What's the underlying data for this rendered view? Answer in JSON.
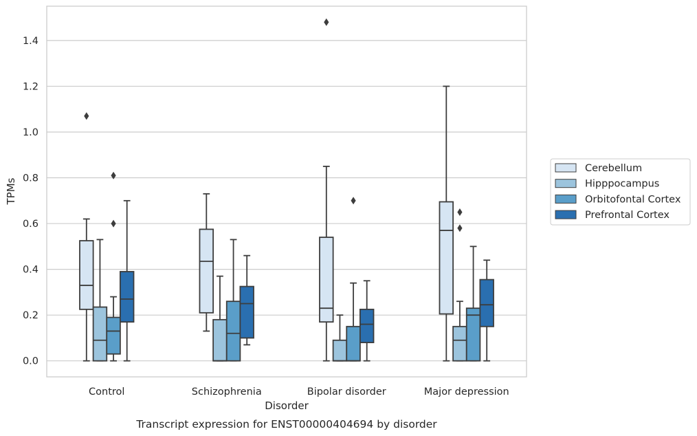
{
  "chart_data": {
    "type": "box",
    "title": "Transcript expression for ENST00000404694 by disorder",
    "xlabel": "Disorder",
    "ylabel": "TPMs",
    "ylim": [
      -0.07,
      1.55
    ],
    "yticks": [
      "0.0",
      "0.2",
      "0.4",
      "0.6",
      "0.8",
      "1.0",
      "1.2",
      "1.4"
    ],
    "grid": "horizontal",
    "legend_placement": "right",
    "categories": [
      "Control",
      "Schizophrenia",
      "Bipolar disorder",
      "Major depression"
    ],
    "series": [
      {
        "name": "Cerebellum",
        "color": "#d6e5f3",
        "boxes": [
          {
            "whisker_low": 0.0,
            "q1": 0.225,
            "median": 0.33,
            "q3": 0.525,
            "whisker_high": 0.62,
            "outliers": [
              1.07
            ]
          },
          {
            "whisker_low": 0.13,
            "q1": 0.21,
            "median": 0.435,
            "q3": 0.575,
            "whisker_high": 0.73,
            "outliers": []
          },
          {
            "whisker_low": 0.0,
            "q1": 0.17,
            "median": 0.23,
            "q3": 0.54,
            "whisker_high": 0.85,
            "outliers": [
              1.48
            ]
          },
          {
            "whisker_low": 0.0,
            "q1": 0.205,
            "median": 0.57,
            "q3": 0.695,
            "whisker_high": 1.2,
            "outliers": []
          }
        ]
      },
      {
        "name": "Hipppocampus",
        "color": "#9cc4dd",
        "boxes": [
          {
            "whisker_low": 0.0,
            "q1": 0.0,
            "median": 0.09,
            "q3": 0.235,
            "whisker_high": 0.53,
            "outliers": []
          },
          {
            "whisker_low": 0.0,
            "q1": 0.0,
            "median": 0.0,
            "q3": 0.18,
            "whisker_high": 0.37,
            "outliers": []
          },
          {
            "whisker_low": 0.0,
            "q1": 0.0,
            "median": 0.0,
            "q3": 0.09,
            "whisker_high": 0.2,
            "outliers": []
          },
          {
            "whisker_low": 0.0,
            "q1": 0.0,
            "median": 0.09,
            "q3": 0.15,
            "whisker_high": 0.26,
            "outliers": [
              0.58,
              0.65
            ]
          }
        ]
      },
      {
        "name": "Orbitofontal Cortex",
        "color": "#5a9ec9",
        "boxes": [
          {
            "whisker_low": 0.0,
            "q1": 0.03,
            "median": 0.13,
            "q3": 0.19,
            "whisker_high": 0.28,
            "outliers": [
              0.6,
              0.81
            ]
          },
          {
            "whisker_low": 0.0,
            "q1": 0.0,
            "median": 0.12,
            "q3": 0.26,
            "whisker_high": 0.53,
            "outliers": []
          },
          {
            "whisker_low": 0.0,
            "q1": 0.0,
            "median": 0.0,
            "q3": 0.15,
            "whisker_high": 0.34,
            "outliers": [
              0.7
            ]
          },
          {
            "whisker_low": 0.0,
            "q1": 0.0,
            "median": 0.2,
            "q3": 0.23,
            "whisker_high": 0.5,
            "outliers": []
          }
        ]
      },
      {
        "name": "Prefrontal Cortex",
        "color": "#2a6fb0",
        "boxes": [
          {
            "whisker_low": 0.0,
            "q1": 0.17,
            "median": 0.27,
            "q3": 0.39,
            "whisker_high": 0.7,
            "outliers": []
          },
          {
            "whisker_low": 0.07,
            "q1": 0.1,
            "median": 0.25,
            "q3": 0.325,
            "whisker_high": 0.46,
            "outliers": []
          },
          {
            "whisker_low": 0.0,
            "q1": 0.08,
            "median": 0.16,
            "q3": 0.225,
            "whisker_high": 0.35,
            "outliers": []
          },
          {
            "whisker_low": 0.0,
            "q1": 0.15,
            "median": 0.245,
            "q3": 0.355,
            "whisker_high": 0.44,
            "outliers": []
          }
        ]
      }
    ]
  }
}
